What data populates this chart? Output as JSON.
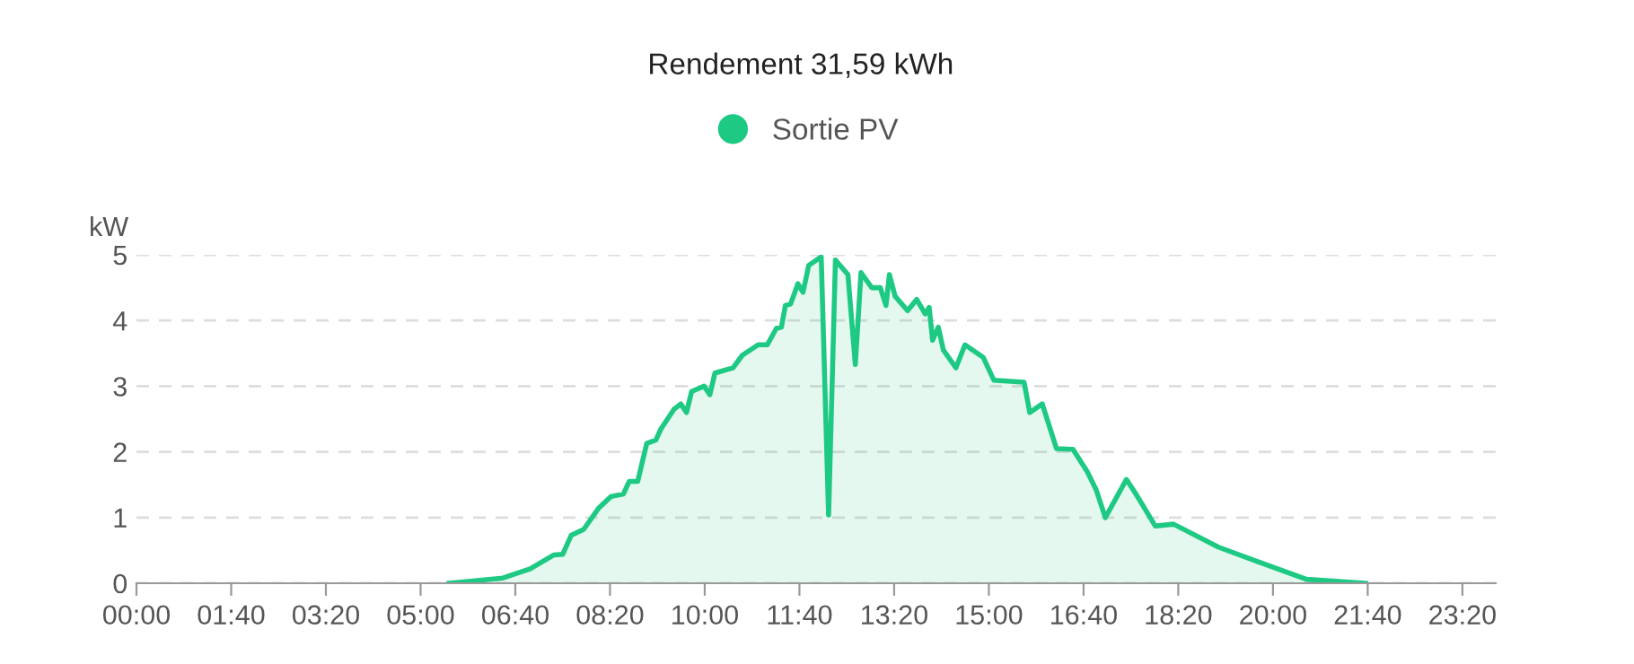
{
  "chart_data": {
    "type": "area",
    "title": "Rendement 31,59 kWh",
    "ylabel": "kW",
    "xlim": [
      0,
      23.92
    ],
    "ylim": [
      0,
      5
    ],
    "yticks": [
      0,
      1,
      2,
      3,
      4,
      5
    ],
    "xticks": [
      {
        "value": 0,
        "label": "00:00"
      },
      {
        "value": 1.6667,
        "label": "01:40"
      },
      {
        "value": 3.3333,
        "label": "03:20"
      },
      {
        "value": 5,
        "label": "05:00"
      },
      {
        "value": 6.6667,
        "label": "06:40"
      },
      {
        "value": 8.3333,
        "label": "08:20"
      },
      {
        "value": 10,
        "label": "10:00"
      },
      {
        "value": 11.6667,
        "label": "11:40"
      },
      {
        "value": 13.3333,
        "label": "13:20"
      },
      {
        "value": 15,
        "label": "15:00"
      },
      {
        "value": 16.6667,
        "label": "16:40"
      },
      {
        "value": 18.3333,
        "label": "18:20"
      },
      {
        "value": 20,
        "label": "20:00"
      },
      {
        "value": 21.6667,
        "label": "21:40"
      },
      {
        "value": 23.3333,
        "label": "23:20"
      }
    ],
    "grid": "y",
    "legend": "top",
    "marker": "none",
    "line_style": "solid",
    "series": [
      {
        "name": "Sortie PV",
        "color": "#1dc983",
        "x": [
          5.5,
          6.45,
          6.93,
          7.34,
          7.5,
          7.65,
          7.87,
          8.13,
          8.35,
          8.57,
          8.67,
          8.82,
          8.98,
          9.14,
          9.23,
          9.46,
          9.58,
          9.68,
          9.77,
          9.99,
          10.09,
          10.18,
          10.5,
          10.66,
          10.94,
          11.1,
          11.26,
          11.35,
          11.42,
          11.51,
          11.64,
          11.73,
          11.83,
          12.05,
          12.18,
          12.3,
          12.52,
          12.65,
          12.75,
          12.94,
          13.09,
          13.19,
          13.25,
          13.35,
          13.57,
          13.73,
          13.88,
          13.95,
          14.01,
          14.11,
          14.2,
          14.42,
          14.58,
          14.9,
          15.09,
          15.62,
          15.72,
          15.94,
          16.19,
          16.48,
          16.73,
          16.89,
          17.05,
          17.42,
          17.58,
          17.93,
          18.25,
          19.04,
          19.73,
          20.59,
          21.63
        ],
        "values": [
          0,
          0.08,
          0.22,
          0.43,
          0.44,
          0.73,
          0.82,
          1.14,
          1.32,
          1.36,
          1.55,
          1.55,
          2.13,
          2.18,
          2.35,
          2.65,
          2.73,
          2.6,
          2.92,
          3.0,
          2.87,
          3.2,
          3.28,
          3.47,
          3.63,
          3.63,
          3.88,
          3.9,
          4.23,
          4.25,
          4.56,
          4.43,
          4.84,
          4.97,
          1.04,
          4.92,
          4.7,
          3.33,
          4.73,
          4.5,
          4.5,
          4.23,
          4.7,
          4.37,
          4.15,
          4.32,
          4.1,
          4.2,
          3.7,
          3.9,
          3.55,
          3.28,
          3.63,
          3.44,
          3.09,
          3.06,
          2.6,
          2.73,
          2.05,
          2.04,
          1.7,
          1.42,
          1.0,
          1.58,
          1.37,
          0.87,
          0.9,
          0.55,
          0.33,
          0.06,
          0
        ]
      }
    ]
  }
}
